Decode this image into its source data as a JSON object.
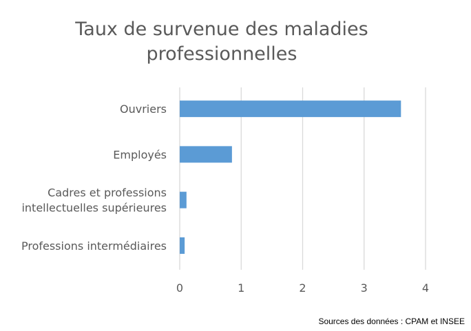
{
  "chart_data": {
    "type": "bar",
    "orientation": "horizontal",
    "title_lines": [
      "Taux de survenue des maladies",
      "professionnelles"
    ],
    "categories": [
      [
        "Ouvriers"
      ],
      [
        "Employés"
      ],
      [
        "Cadres et professions",
        "intellectuelles supérieures"
      ],
      [
        "Professions intermédiaires"
      ]
    ],
    "values": [
      3.6,
      0.85,
      0.11,
      0.08
    ],
    "xlim": [
      0,
      4
    ],
    "xticks": [
      "0",
      "1",
      "2",
      "3",
      "4"
    ],
    "grid": true,
    "bar_color": "#5b9bd5",
    "source": "Sources des données : CPAM et INSEE"
  }
}
